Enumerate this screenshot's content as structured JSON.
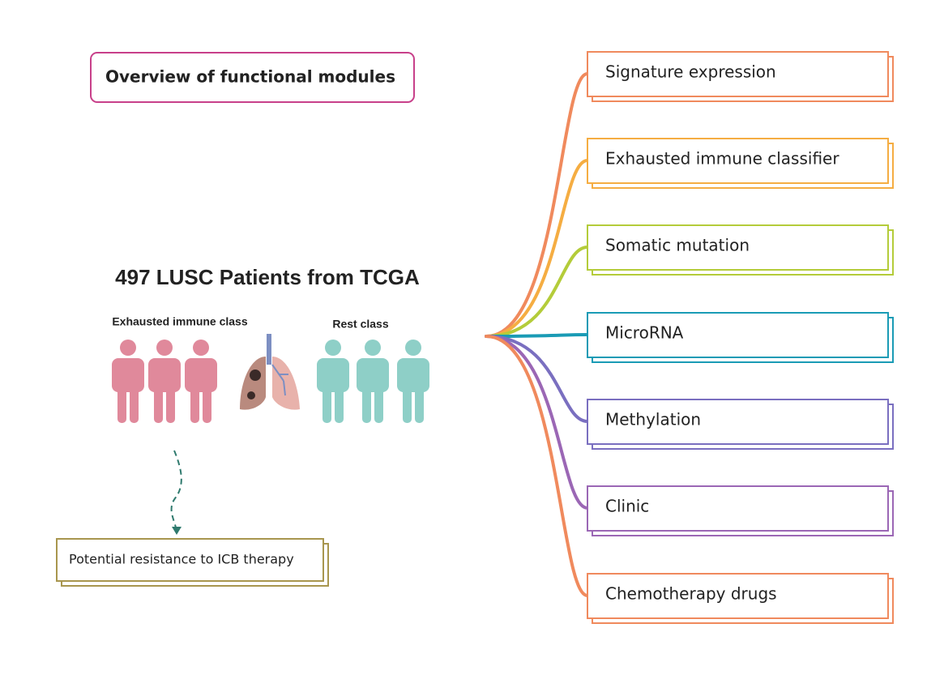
{
  "title": "Overview of functional modules",
  "cohort": {
    "title": "497 LUSC Patients from TCGA",
    "groups": [
      "Exhausted immune class",
      "Rest class"
    ]
  },
  "outcome": "Potential resistance to ICB therapy",
  "modules": [
    "Signature expression",
    "Exhausted immune classifier",
    "Somatic mutation",
    "MicroRNA",
    "Methylation",
    "Clinic",
    "Chemotherapy drugs"
  ]
}
